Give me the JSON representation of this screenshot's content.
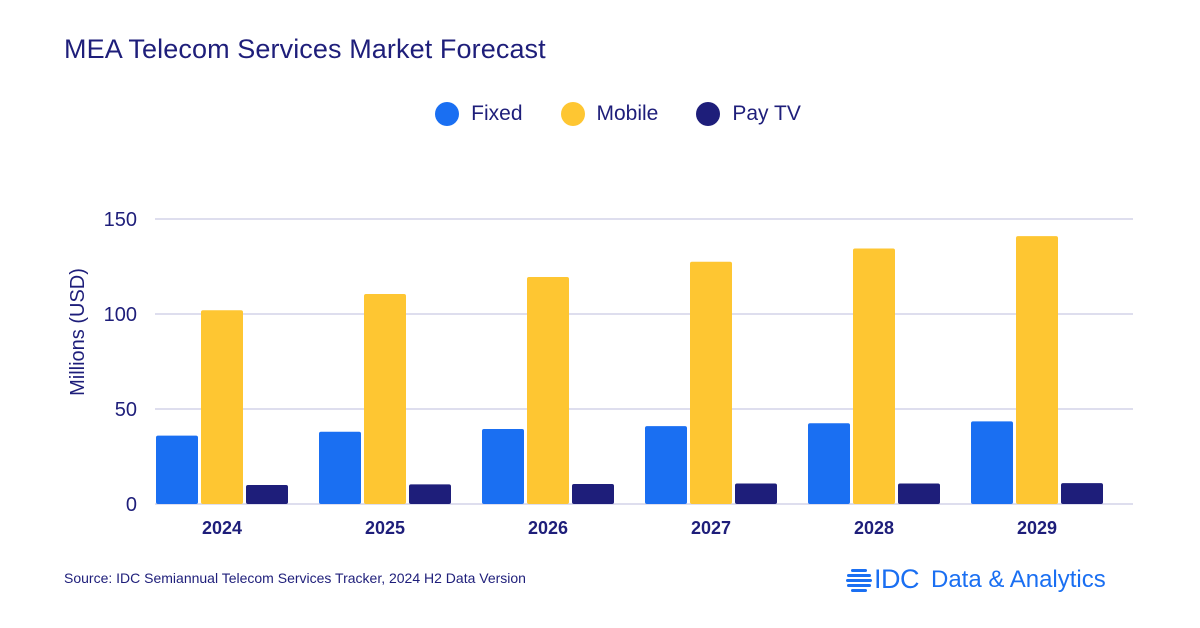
{
  "chart_data": {
    "type": "bar",
    "title": "MEA Telecom Services Market Forecast",
    "xlabel": "",
    "ylabel": "Millions (USD)",
    "ylim": [
      0,
      150
    ],
    "yticks": [
      0,
      50,
      100,
      150
    ],
    "grid": true,
    "legend_position": "top-center",
    "categories": [
      "2024",
      "2025",
      "2026",
      "2027",
      "2028",
      "2029"
    ],
    "series": [
      {
        "name": "Fixed",
        "color": "#1a6ff2",
        "values": [
          36,
          38,
          39.5,
          41,
          42.5,
          43.5
        ]
      },
      {
        "name": "Mobile",
        "color": "#fec632",
        "values": [
          102,
          110.5,
          119.5,
          127.5,
          134.5,
          141
        ]
      },
      {
        "name": "Pay TV",
        "color": "#1e1e7a",
        "values": [
          10,
          10.3,
          10.5,
          10.8,
          10.8,
          11
        ]
      }
    ]
  },
  "header": {
    "title": "MEA Telecom Services Market Forecast"
  },
  "legend": [
    {
      "label": "Fixed",
      "color": "#1a6ff2"
    },
    {
      "label": "Mobile",
      "color": "#fec632"
    },
    {
      "label": "Pay TV",
      "color": "#1e1e7a"
    }
  ],
  "footer": {
    "source": "Source: IDC Semiannual Telecom Services Tracker, 2024 H2 Data Version",
    "logo_mark": "IDC",
    "logo_text": "Data & Analytics"
  },
  "colors": {
    "text": "#1e1e7a",
    "grid": "#d3d3e8",
    "brand": "#1a6ff2"
  }
}
